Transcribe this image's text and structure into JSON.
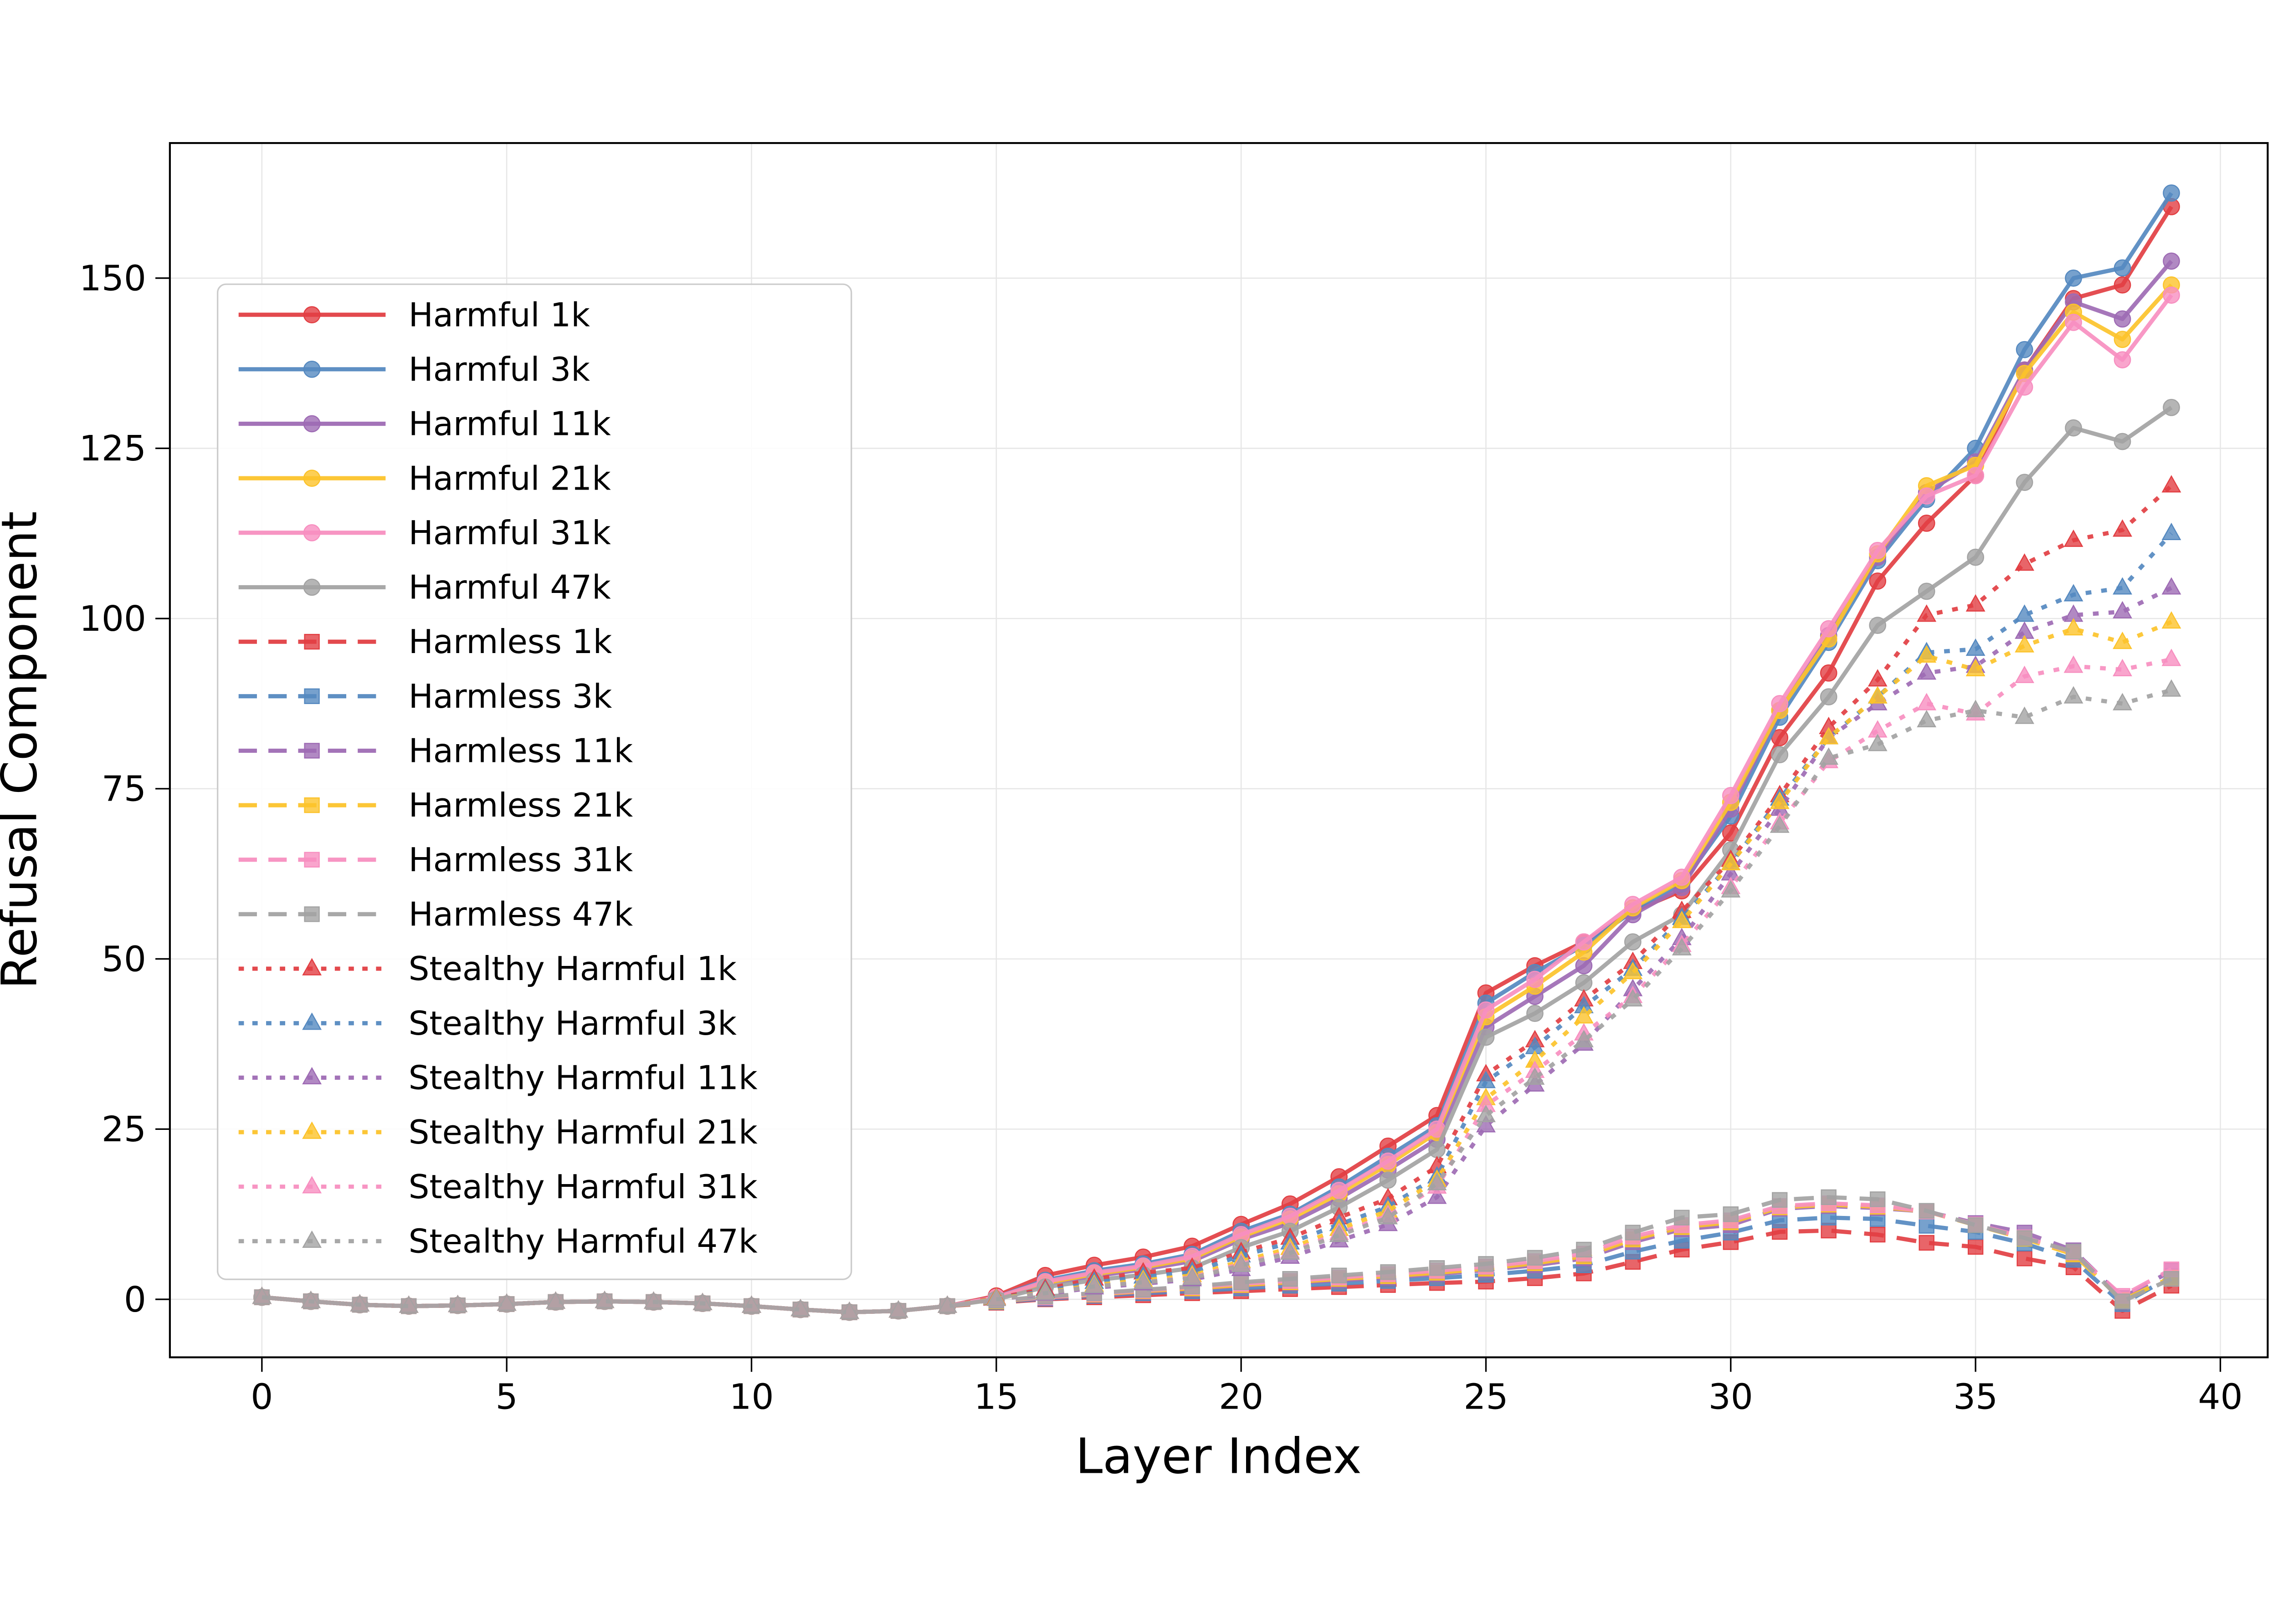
{
  "figure": {
    "background": "#ffffff",
    "spine_color": "#000000",
    "grid_color": "#e6e6e6",
    "text_color": "#000000",
    "legend_border_color": "#cccccc"
  },
  "axes": {
    "x": {
      "label": "Layer Index",
      "ticks": [
        0,
        5,
        10,
        15,
        20,
        25,
        30,
        35,
        40
      ],
      "range": [
        -1.9,
        41.0
      ]
    },
    "y": {
      "label": "Refusal Component",
      "ticks": [
        0,
        25,
        50,
        75,
        100,
        125,
        150
      ],
      "range": [
        -8.5,
        169.8
      ]
    }
  },
  "legend": {
    "entries": [
      {
        "label": "Harmful 1k",
        "series": "harmful_1k"
      },
      {
        "label": "Harmful 3k",
        "series": "harmful_3k"
      },
      {
        "label": "Harmful 11k",
        "series": "harmful_11k"
      },
      {
        "label": "Harmful 21k",
        "series": "harmful_21k"
      },
      {
        "label": "Harmful 31k",
        "series": "harmful_31k"
      },
      {
        "label": "Harmful 47k",
        "series": "harmful_47k"
      },
      {
        "label": "Harmless 1k",
        "series": "harmless_1k"
      },
      {
        "label": "Harmless 3k",
        "series": "harmless_3k"
      },
      {
        "label": "Harmless 11k",
        "series": "harmless_11k"
      },
      {
        "label": "Harmless 21k",
        "series": "harmless_21k"
      },
      {
        "label": "Harmless 31k",
        "series": "harmless_31k"
      },
      {
        "label": "Harmless 47k",
        "series": "harmless_47k"
      },
      {
        "label": "Stealthy Harmful 1k",
        "series": "stealthy_1k"
      },
      {
        "label": "Stealthy Harmful 3k",
        "series": "stealthy_3k"
      },
      {
        "label": "Stealthy Harmful 11k",
        "series": "stealthy_11k"
      },
      {
        "label": "Stealthy Harmful 21k",
        "series": "stealthy_21k"
      },
      {
        "label": "Stealthy Harmful 31k",
        "series": "stealthy_31k"
      },
      {
        "label": "Stealthy Harmful 47k",
        "series": "stealthy_47k"
      }
    ]
  },
  "chart_data": {
    "type": "line",
    "title": "",
    "xlabel": "Layer Index",
    "ylabel": "Refusal Component",
    "x": [
      0,
      1,
      2,
      3,
      4,
      5,
      6,
      7,
      8,
      9,
      10,
      11,
      12,
      13,
      14,
      15,
      16,
      17,
      18,
      19,
      20,
      21,
      22,
      23,
      24,
      25,
      26,
      27,
      28,
      29,
      30,
      31,
      32,
      33,
      34,
      35,
      36,
      37,
      38,
      39
    ],
    "xlim": [
      -1.9,
      41.0
    ],
    "ylim": [
      -8.5,
      169.8
    ],
    "grid": true,
    "legend_position": "upper left",
    "series": [
      {
        "name": "Harmful 1k",
        "id": "harmful_1k",
        "color": "#e23f43",
        "style": "solid",
        "marker": "circle",
        "values": [
          0.3,
          -0.3,
          -0.8,
          -1.0,
          -0.9,
          -0.7,
          -0.4,
          -0.3,
          -0.4,
          -0.6,
          -1.0,
          -1.5,
          -1.9,
          -1.7,
          -1.0,
          0.5,
          3.5,
          5,
          6.2,
          7.8,
          11,
          14,
          18,
          22.5,
          27,
          45,
          49,
          52.5,
          57,
          60,
          68.5,
          82.5,
          92,
          105.5,
          114,
          121,
          136.5,
          147,
          149,
          160.5
        ]
      },
      {
        "name": "Harmful 3k",
        "id": "harmful_3k",
        "color": "#5589c0",
        "style": "solid",
        "marker": "circle",
        "values": [
          0.3,
          -0.3,
          -0.8,
          -1.0,
          -0.9,
          -0.7,
          -0.4,
          -0.3,
          -0.4,
          -0.6,
          -1.0,
          -1.5,
          -1.9,
          -1.7,
          -1.0,
          0.3,
          2.8,
          4.2,
          5.2,
          6.6,
          10,
          12.5,
          16.5,
          21,
          25.5,
          43.5,
          48,
          52,
          57,
          61,
          71,
          85.5,
          96.5,
          108.5,
          117.5,
          125,
          139.5,
          150,
          151.5,
          162.5
        ]
      },
      {
        "name": "Harmful 11k",
        "id": "harmful_11k",
        "color": "#9e6bb4",
        "style": "solid",
        "marker": "circle",
        "values": [
          0.3,
          -0.3,
          -0.8,
          -1.0,
          -0.9,
          -0.7,
          -0.4,
          -0.3,
          -0.4,
          -0.6,
          -1.0,
          -1.5,
          -1.9,
          -1.7,
          -1.0,
          0.2,
          2.2,
          3.4,
          4.4,
          5.6,
          8.8,
          11.2,
          14.8,
          19,
          23.5,
          40,
          44.5,
          49,
          56.5,
          60.5,
          72,
          86.5,
          97.5,
          109,
          118.5,
          123,
          136.5,
          146.5,
          144,
          152.5
        ]
      },
      {
        "name": "Harmful 21k",
        "id": "harmful_21k",
        "color": "#fcc32b",
        "style": "solid",
        "marker": "circle",
        "values": [
          0.3,
          -0.3,
          -0.8,
          -1.0,
          -0.9,
          -0.7,
          -0.4,
          -0.3,
          -0.4,
          -0.6,
          -1.0,
          -1.5,
          -1.9,
          -1.7,
          -1.0,
          0.2,
          2.4,
          3.7,
          4.7,
          6,
          9.2,
          11.8,
          15.5,
          19.8,
          24.5,
          41.5,
          46,
          51,
          57.5,
          61.5,
          73,
          86.5,
          97,
          109.5,
          119.5,
          122.5,
          136,
          145,
          141,
          149
        ]
      },
      {
        "name": "Harmful 31k",
        "id": "harmful_31k",
        "color": "#f78fc0",
        "style": "solid",
        "marker": "circle",
        "values": [
          0.3,
          -0.3,
          -0.8,
          -1.0,
          -0.9,
          -0.7,
          -0.4,
          -0.3,
          -0.4,
          -0.6,
          -1.0,
          -1.5,
          -1.9,
          -1.7,
          -1.0,
          0.3,
          2.6,
          3.9,
          4.9,
          6.3,
          9.5,
          12.2,
          16,
          20.3,
          25,
          42.5,
          47,
          52.5,
          58,
          62,
          74,
          87.5,
          98.5,
          110,
          118,
          121,
          134,
          143.5,
          138,
          147.5
        ]
      },
      {
        "name": "Harmful 47k",
        "id": "harmful_47k",
        "color": "#a3a3a3",
        "style": "solid",
        "marker": "circle",
        "values": [
          0.3,
          -0.3,
          -0.8,
          -1.0,
          -0.9,
          -0.7,
          -0.4,
          -0.3,
          -0.4,
          -0.6,
          -1.0,
          -1.5,
          -1.9,
          -1.7,
          -1.0,
          0,
          1.8,
          2.8,
          3.6,
          4.6,
          7.6,
          10,
          13.5,
          17.5,
          22,
          38.5,
          42,
          46.5,
          52.5,
          56.5,
          66,
          80,
          88.5,
          99,
          104,
          109,
          120,
          128,
          126,
          131
        ]
      },
      {
        "name": "Harmless 1k",
        "id": "harmless_1k",
        "color": "#e23f43",
        "style": "dashed",
        "marker": "square",
        "values": [
          0.3,
          -0.3,
          -0.8,
          -1.0,
          -0.9,
          -0.7,
          -0.4,
          -0.3,
          -0.4,
          -0.6,
          -1.0,
          -1.5,
          -1.9,
          -1.7,
          -1.0,
          -0.5,
          0,
          0.3,
          0.6,
          0.9,
          1.2,
          1.5,
          1.8,
          2.1,
          2.4,
          2.6,
          3.1,
          3.8,
          5.5,
          7.3,
          8.4,
          9.9,
          10.1,
          9.5,
          8.3,
          7.7,
          6,
          4.7,
          -1.7,
          2
        ]
      },
      {
        "name": "Harmless 3k",
        "id": "harmless_3k",
        "color": "#5589c0",
        "style": "dashed",
        "marker": "square",
        "values": [
          0.3,
          -0.3,
          -0.8,
          -1.0,
          -0.9,
          -0.7,
          -0.4,
          -0.3,
          -0.4,
          -0.6,
          -1.0,
          -1.5,
          -1.9,
          -1.7,
          -1.0,
          -0.4,
          0.1,
          0.5,
          0.9,
          1.2,
          1.6,
          2,
          2.3,
          2.7,
          3.1,
          3.6,
          4.2,
          5,
          7,
          8.6,
          9.8,
          11.6,
          12,
          11.8,
          10.8,
          9.9,
          8.2,
          5.8,
          -0.7,
          3.4
        ]
      },
      {
        "name": "Harmless 11k",
        "id": "harmless_11k",
        "color": "#9e6bb4",
        "style": "dashed",
        "marker": "square",
        "values": [
          0.3,
          -0.3,
          -0.8,
          -1.0,
          -0.9,
          -0.7,
          -0.4,
          -0.3,
          -0.4,
          -0.6,
          -1.0,
          -1.5,
          -1.9,
          -1.7,
          -1.0,
          -0.3,
          0.2,
          0.6,
          1.1,
          1.5,
          2,
          2.4,
          2.8,
          3.2,
          3.7,
          4.3,
          5,
          6,
          8.4,
          10.3,
          10.9,
          13.3,
          13.7,
          13.4,
          12.9,
          11.2,
          9.8,
          7.2,
          0.2,
          4.2
        ]
      },
      {
        "name": "Harmless 21k",
        "id": "harmless_21k",
        "color": "#fcc32b",
        "style": "dashed",
        "marker": "square",
        "values": [
          0.3,
          -0.3,
          -0.8,
          -1.0,
          -0.9,
          -0.7,
          -0.4,
          -0.3,
          -0.4,
          -0.6,
          -1.0,
          -1.5,
          -1.9,
          -1.7,
          -1.0,
          -0.3,
          0.3,
          0.7,
          1.2,
          1.6,
          2.1,
          2.5,
          3,
          3.4,
          3.9,
          4.5,
          5.3,
          6.3,
          8.8,
          10.6,
          11.3,
          13.5,
          13.9,
          13.6,
          12.9,
          10.9,
          8.9,
          6.6,
          -0.1,
          3.2
        ]
      },
      {
        "name": "Harmless 31k",
        "id": "harmless_31k",
        "color": "#f78fc0",
        "style": "dashed",
        "marker": "square",
        "values": [
          0.3,
          -0.3,
          -0.8,
          -1.0,
          -0.9,
          -0.7,
          -0.4,
          -0.3,
          -0.4,
          -0.6,
          -1.0,
          -1.5,
          -1.9,
          -1.7,
          -1.0,
          -0.2,
          0.3,
          0.8,
          1.3,
          1.8,
          2.3,
          2.7,
          3.2,
          3.7,
          4.2,
          4.8,
          5.6,
          6.7,
          9.2,
          10.9,
          11.6,
          13.7,
          14.1,
          13.8,
          12.9,
          11,
          9.1,
          6.9,
          0.5,
          4.4
        ]
      },
      {
        "name": "Harmless 47k",
        "id": "harmless_47k",
        "color": "#a3a3a3",
        "style": "dashed",
        "marker": "square",
        "values": [
          0.3,
          -0.3,
          -0.8,
          -1.0,
          -0.9,
          -0.7,
          -0.4,
          -0.3,
          -0.4,
          -0.6,
          -1.0,
          -1.5,
          -1.9,
          -1.7,
          -1.0,
          -0.2,
          0.4,
          0.9,
          1.4,
          1.9,
          2.5,
          3,
          3.5,
          4,
          4.6,
          5.2,
          6.1,
          7.3,
          9.8,
          12,
          12.5,
          14.6,
          15,
          14.7,
          13,
          10.9,
          9,
          7,
          -0.3,
          3
        ]
      },
      {
        "name": "Stealthy Harmful 1k",
        "id": "stealthy_1k",
        "color": "#e23f43",
        "style": "dotted",
        "marker": "triangle",
        "values": [
          0.3,
          -0.3,
          -0.8,
          -1.0,
          -0.9,
          -0.7,
          -0.4,
          -0.3,
          -0.4,
          -0.6,
          -1.0,
          -1.5,
          -1.9,
          -1.7,
          -1.0,
          0.2,
          1.5,
          3,
          3.9,
          4.6,
          6.9,
          9,
          12,
          14.8,
          19.5,
          33,
          38,
          44,
          49.5,
          57,
          64.5,
          74,
          84,
          91,
          100.5,
          102,
          108,
          111.5,
          113,
          119.5
        ]
      },
      {
        "name": "Stealthy Harmful 3k",
        "id": "stealthy_3k",
        "color": "#5589c0",
        "style": "dotted",
        "marker": "triangle",
        "values": [
          0.3,
          -0.3,
          -0.8,
          -1.0,
          -0.9,
          -0.7,
          -0.4,
          -0.3,
          -0.4,
          -0.6,
          -1.0,
          -1.5,
          -1.9,
          -1.7,
          -1.0,
          0.1,
          1.2,
          2.5,
          3.3,
          4,
          6.4,
          8.3,
          11,
          13.6,
          18,
          32,
          37,
          43,
          48.5,
          56,
          64,
          73.5,
          82.5,
          88.5,
          95,
          95.5,
          100.5,
          103.5,
          104.5,
          112.5
        ]
      },
      {
        "name": "Stealthy Harmful 11k",
        "id": "stealthy_11k",
        "color": "#9e6bb4",
        "style": "dotted",
        "marker": "triangle",
        "values": [
          0.3,
          -0.3,
          -0.8,
          -1.0,
          -0.9,
          -0.7,
          -0.4,
          -0.3,
          -0.4,
          -0.6,
          -1.0,
          -1.5,
          -1.9,
          -1.7,
          -1.0,
          0,
          0.8,
          1.7,
          2.3,
          2.9,
          4.4,
          6.2,
          8.6,
          11,
          15,
          25.5,
          31.5,
          37.5,
          45.5,
          53,
          62.5,
          72,
          82.5,
          87.5,
          92,
          93,
          98,
          100.5,
          101,
          104.5
        ]
      },
      {
        "name": "Stealthy Harmful 21k",
        "id": "stealthy_21k",
        "color": "#fcc32b",
        "style": "dotted",
        "marker": "triangle",
        "values": [
          0.3,
          -0.3,
          -0.8,
          -1.0,
          -0.9,
          -0.7,
          -0.4,
          -0.3,
          -0.4,
          -0.6,
          -1.0,
          -1.5,
          -1.9,
          -1.7,
          -1.0,
          0.1,
          1,
          2.1,
          2.8,
          3.5,
          5.6,
          7.5,
          10.3,
          13,
          17.5,
          29.5,
          35,
          41.5,
          48,
          55.5,
          64,
          73,
          82.5,
          88.5,
          94.5,
          92.5,
          96,
          98.5,
          96.5,
          99.5
        ]
      },
      {
        "name": "Stealthy Harmful 31k",
        "id": "stealthy_31k",
        "color": "#f78fc0",
        "style": "dotted",
        "marker": "triangle",
        "values": [
          0.3,
          -0.3,
          -0.8,
          -1.0,
          -0.9,
          -0.7,
          -0.4,
          -0.3,
          -0.4,
          -0.6,
          -1.0,
          -1.5,
          -1.9,
          -1.7,
          -1.0,
          0,
          0.9,
          1.9,
          2.5,
          3.2,
          5.2,
          7,
          9.7,
          12.3,
          16.5,
          28.5,
          33.5,
          39,
          44.5,
          52,
          60.5,
          70,
          79,
          83.5,
          87.5,
          86,
          91.5,
          93,
          92.5,
          94
        ]
      },
      {
        "name": "Stealthy Harmful 47k",
        "id": "stealthy_47k",
        "color": "#a3a3a3",
        "style": "dotted",
        "marker": "triangle",
        "values": [
          0.3,
          -0.3,
          -0.8,
          -1.0,
          -0.9,
          -0.7,
          -0.4,
          -0.3,
          -0.4,
          -0.6,
          -1.0,
          -1.5,
          -1.9,
          -1.7,
          -1.0,
          0,
          0.9,
          1.9,
          2.5,
          3.1,
          5,
          6.8,
          9.4,
          12,
          17,
          27,
          32.5,
          38,
          44,
          51.5,
          60,
          69.5,
          79.5,
          81.5,
          85,
          86.5,
          85.5,
          88.5,
          87.5,
          89.5
        ]
      }
    ]
  }
}
